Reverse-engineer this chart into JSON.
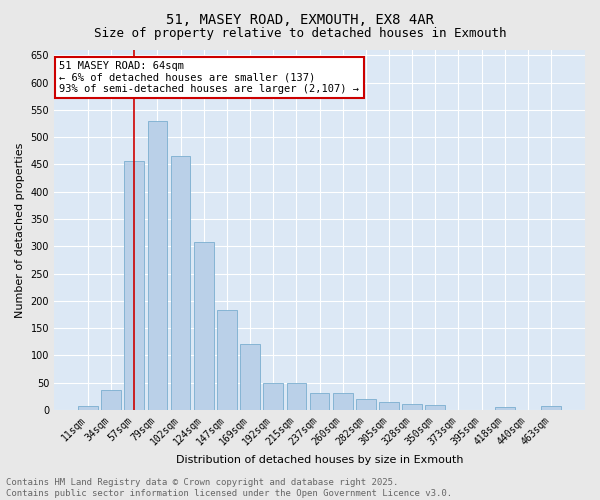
{
  "title": "51, MASEY ROAD, EXMOUTH, EX8 4AR",
  "subtitle": "Size of property relative to detached houses in Exmouth",
  "xlabel": "Distribution of detached houses by size in Exmouth",
  "ylabel": "Number of detached properties",
  "categories": [
    "11sqm",
    "34sqm",
    "57sqm",
    "79sqm",
    "102sqm",
    "124sqm",
    "147sqm",
    "169sqm",
    "192sqm",
    "215sqm",
    "237sqm",
    "260sqm",
    "282sqm",
    "305sqm",
    "328sqm",
    "350sqm",
    "373sqm",
    "395sqm",
    "418sqm",
    "440sqm",
    "463sqm"
  ],
  "values": [
    7,
    37,
    457,
    530,
    465,
    308,
    183,
    120,
    50,
    50,
    30,
    30,
    20,
    15,
    10,
    8,
    0,
    0,
    5,
    0,
    7
  ],
  "bar_color": "#bad0e8",
  "bar_edge_color": "#7aaed0",
  "vline_x_index": 2,
  "vline_color": "#cc0000",
  "annotation_text": "51 MASEY ROAD: 64sqm\n← 6% of detached houses are smaller (137)\n93% of semi-detached houses are larger (2,107) →",
  "annotation_box_color": "#cc0000",
  "ylim": [
    0,
    660
  ],
  "yticks": [
    0,
    50,
    100,
    150,
    200,
    250,
    300,
    350,
    400,
    450,
    500,
    550,
    600,
    650
  ],
  "fig_background_color": "#e8e8e8",
  "plot_background_color": "#dce8f5",
  "grid_color": "#ffffff",
  "footer_text": "Contains HM Land Registry data © Crown copyright and database right 2025.\nContains public sector information licensed under the Open Government Licence v3.0.",
  "title_fontsize": 10,
  "subtitle_fontsize": 9,
  "xlabel_fontsize": 8,
  "ylabel_fontsize": 8,
  "tick_fontsize": 7,
  "annotation_fontsize": 7.5,
  "footer_fontsize": 6.5
}
